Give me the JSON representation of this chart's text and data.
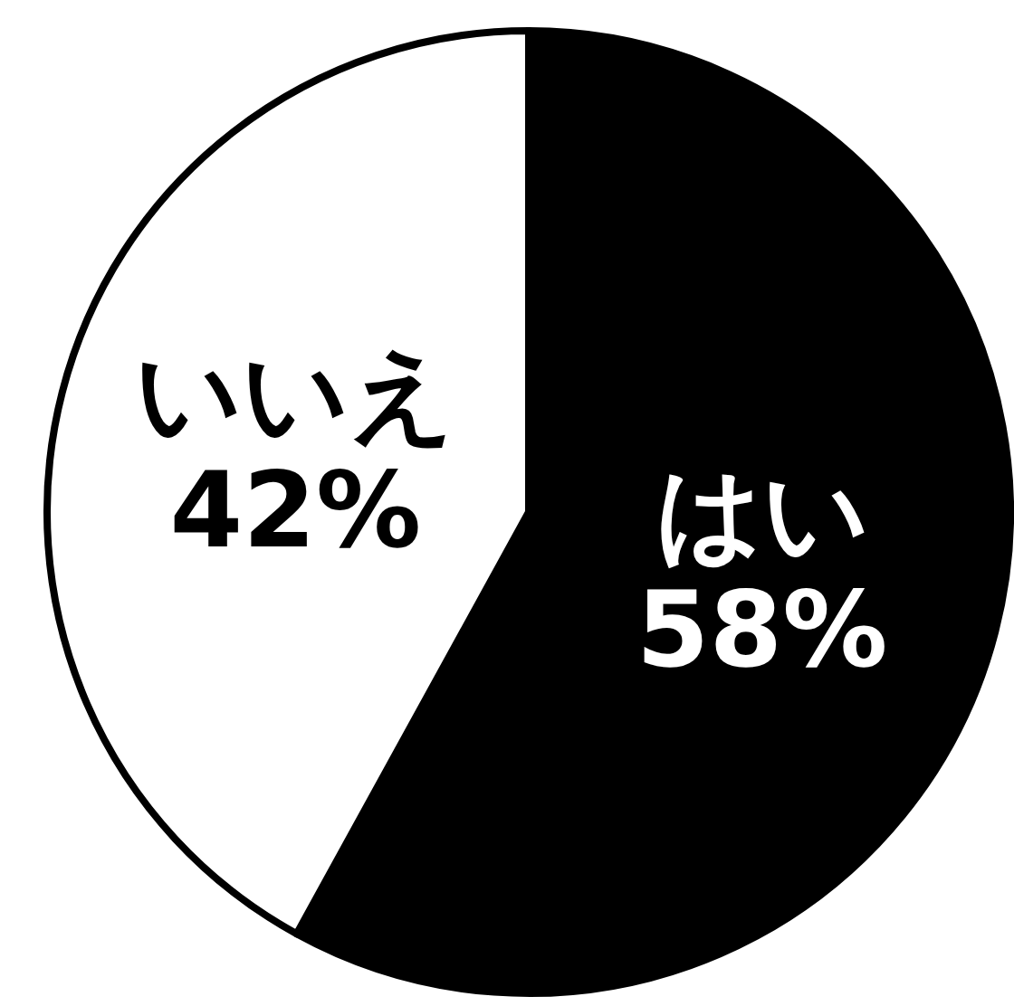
{
  "chart_data": {
    "type": "pie",
    "categories": [
      "はい",
      "いいえ"
    ],
    "values": [
      58,
      42
    ],
    "colors": [
      "#000000",
      "#ffffff"
    ],
    "value_labels": [
      "58%",
      "42%"
    ]
  }
}
